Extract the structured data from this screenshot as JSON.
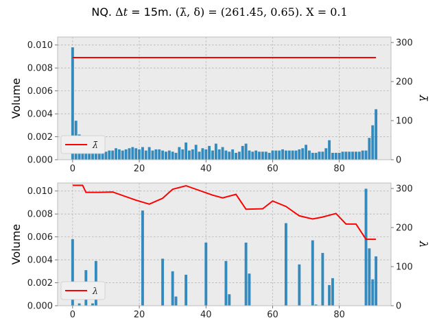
{
  "title": {
    "prefix": "NQ. ",
    "delta_t": "Δ",
    "t_symbol": "t",
    "t_value": " = 15m. ",
    "params": "(λ̄, δ) = (261.45, 0.65). X = 0.1"
  },
  "colors": {
    "bar": "#348ABD",
    "line": "#FF0000",
    "axes_bg": "#EBEBEB",
    "grid": "#B2B2B2",
    "axes_edge": "#BCBCBC"
  },
  "chart_data": [
    {
      "type": "bar",
      "ylabel": "Volume",
      "y2label": "λ̄",
      "xlim": [
        -4.5,
        95.5
      ],
      "ylim": [
        0,
        0.0107
      ],
      "y2lim": [
        0,
        314
      ],
      "xticks": [
        "0",
        "20",
        "40",
        "60",
        "80"
      ],
      "yticks": [
        "0.000",
        "0.002",
        "0.004",
        "0.006",
        "0.008",
        "0.010"
      ],
      "y2ticks": [
        "0",
        "100",
        "200",
        "300"
      ],
      "grid": true,
      "legend": {
        "position": "lower-left",
        "label": "λ̄"
      },
      "series": [
        {
          "kind": "bar",
          "x": [
            0,
            1,
            2,
            3,
            4,
            5,
            6,
            7,
            8,
            9,
            10,
            11,
            12,
            13,
            14,
            15,
            16,
            17,
            18,
            19,
            20,
            21,
            22,
            23,
            24,
            25,
            26,
            27,
            28,
            29,
            30,
            31,
            32,
            33,
            34,
            35,
            36,
            37,
            38,
            39,
            40,
            41,
            42,
            43,
            44,
            45,
            46,
            47,
            48,
            49,
            50,
            51,
            52,
            53,
            54,
            55,
            56,
            57,
            58,
            59,
            60,
            61,
            62,
            63,
            64,
            65,
            66,
            67,
            68,
            69,
            70,
            71,
            72,
            73,
            74,
            75,
            76,
            77,
            78,
            79,
            80,
            81,
            82,
            83,
            84,
            85,
            86,
            87,
            88,
            89,
            90,
            91
          ],
          "values": [
            0.0098,
            0.0034,
            0.0022,
            0.0017,
            0.0012,
            0.001,
            0.0008,
            0.0007,
            0.0006,
            0.0006,
            0.0007,
            0.0008,
            0.0008,
            0.001,
            0.0009,
            0.0008,
            0.0009,
            0.001,
            0.0011,
            0.001,
            0.0009,
            0.0011,
            0.0008,
            0.0011,
            0.0008,
            0.0009,
            0.0009,
            0.0008,
            0.0007,
            0.0008,
            0.0007,
            0.0006,
            0.0011,
            0.0009,
            0.0015,
            0.0008,
            0.0009,
            0.0013,
            0.0007,
            0.001,
            0.0009,
            0.0012,
            0.0008,
            0.0014,
            0.0009,
            0.0011,
            0.0008,
            0.0007,
            0.0009,
            0.0006,
            0.0007,
            0.0012,
            0.0014,
            0.0008,
            0.0007,
            0.0008,
            0.0007,
            0.0007,
            0.0007,
            0.0006,
            0.0008,
            0.0008,
            0.0008,
            0.0009,
            0.0008,
            0.0008,
            0.0008,
            0.0008,
            0.0009,
            0.001,
            0.0013,
            0.0008,
            0.0006,
            0.0006,
            0.0007,
            0.0007,
            0.001,
            0.0017,
            0.0006,
            0.0006,
            0.0006,
            0.0007,
            0.0007,
            0.0007,
            0.0007,
            0.0007,
            0.0007,
            0.0008,
            0.0008,
            0.0019,
            0.003,
            0.0044
          ]
        },
        {
          "kind": "line",
          "name": "λ̄",
          "axis": "right",
          "x": [
            0,
            91
          ],
          "values": [
            261.45,
            261.45
          ]
        }
      ]
    },
    {
      "type": "bar",
      "ylabel": "Volume",
      "y2label": "λ",
      "xlim": [
        -4.5,
        95.5
      ],
      "ylim": [
        0,
        0.0107
      ],
      "y2lim": [
        0,
        314
      ],
      "xticks": [
        "0",
        "20",
        "40",
        "60",
        "80"
      ],
      "yticks": [
        "0.000",
        "0.002",
        "0.004",
        "0.006",
        "0.008",
        "0.010"
      ],
      "y2ticks": [
        "0",
        "100",
        "200",
        "300"
      ],
      "grid": true,
      "legend": {
        "position": "lower-left",
        "label": "λ"
      },
      "series": [
        {
          "kind": "bar",
          "x": [
            0,
            2,
            4,
            6,
            7,
            21,
            27,
            30,
            31,
            34,
            40,
            46,
            47,
            52,
            53,
            64,
            68,
            72,
            73,
            75,
            77,
            78,
            88,
            89,
            90,
            91
          ],
          "values": [
            0.0058,
            0.0002,
            0.0031,
            0.0002,
            0.0039,
            0.0083,
            0.0041,
            0.003,
            0.0008,
            0.0027,
            0.0055,
            0.0039,
            0.001,
            0.0055,
            0.0028,
            0.0072,
            0.0036,
            0.0057,
            0.0001,
            0.0046,
            0.0018,
            0.0024,
            0.0102,
            0.005,
            0.0023,
            0.0043
          ]
        },
        {
          "kind": "line",
          "name": "λ",
          "axis": "right",
          "step": true,
          "x": [
            0,
            3,
            4,
            8,
            12,
            19,
            23,
            27,
            30,
            34,
            42,
            45,
            49,
            52,
            57,
            60,
            64,
            68,
            72,
            75,
            79,
            82,
            85,
            88,
            91
          ],
          "values": [
            308,
            308,
            290,
            290,
            291,
            270,
            260,
            275,
            298,
            307,
            283,
            276,
            285,
            247,
            248,
            268,
            254,
            230,
            222,
            227,
            236,
            209,
            209,
            170,
            170
          ]
        }
      ]
    }
  ]
}
